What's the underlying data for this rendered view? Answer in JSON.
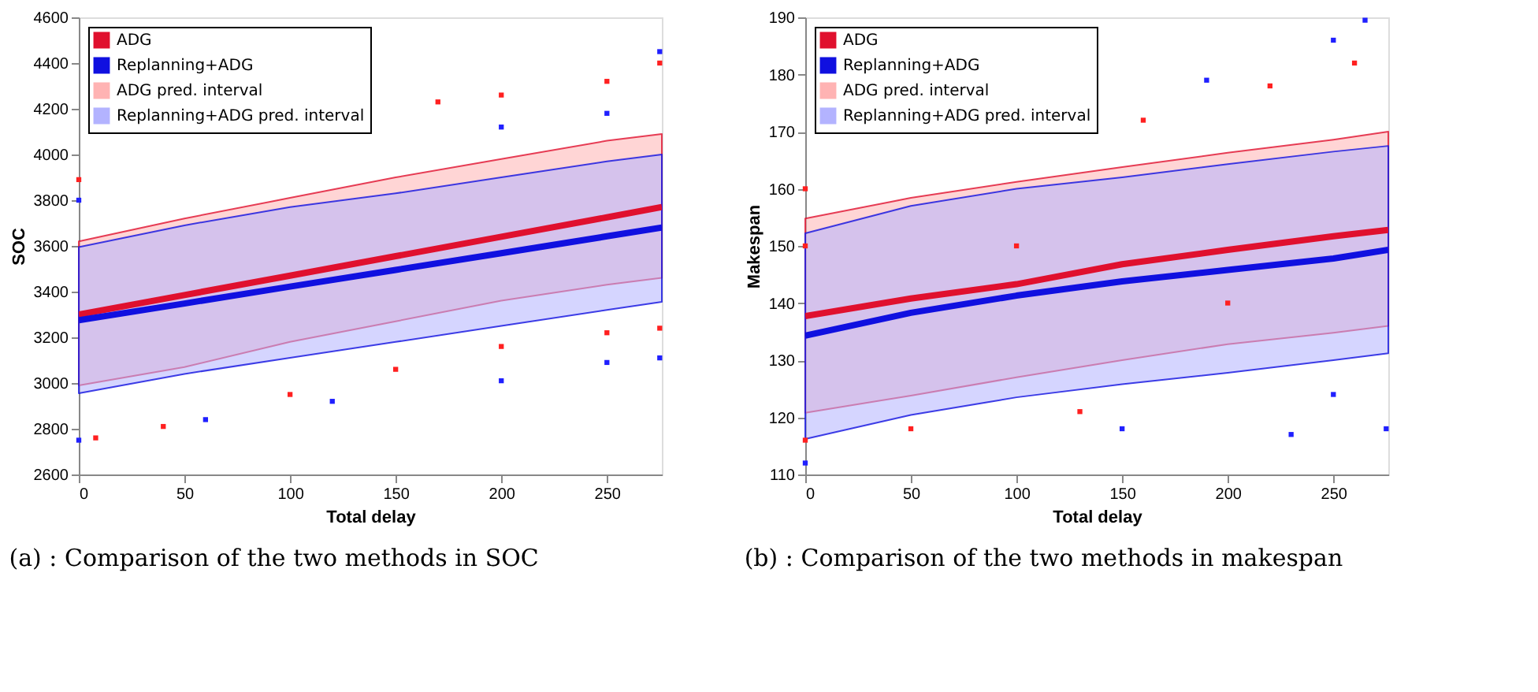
{
  "chart_data": [
    {
      "type": "line",
      "xlabel": "Total delay",
      "ylabel": "SOC",
      "xlim": [
        0,
        276
      ],
      "xticks": [
        0,
        50,
        100,
        150,
        200,
        250
      ],
      "ylim": [
        2600,
        4600
      ],
      "yticks": [
        2600,
        2800,
        3000,
        3200,
        3400,
        3600,
        3800,
        4000,
        4200,
        4400,
        4600
      ],
      "grid": false,
      "legend": "top left",
      "annotations": [
        "(a) : Comparison of the two methods in SOC"
      ],
      "x": [
        0,
        50,
        100,
        150,
        200,
        250,
        276
      ],
      "series": [
        {
          "type": "area",
          "name": "ADG pred. interval",
          "color": "#ffb3b3",
          "values": [
            null,
            null,
            null,
            null,
            null,
            null,
            null
          ]
        },
        {
          "type": "area",
          "name": "Replanning+ADG pred. interval",
          "color": "#b3b3ff",
          "values": [
            null,
            null,
            null,
            null,
            null,
            null,
            null
          ]
        },
        {
          "type": "scatter",
          "color": "#ff2020",
          "x": [
            0,
            170,
            200,
            250,
            275,
            8,
            40,
            100,
            150,
            200,
            250,
            275
          ],
          "values": [
            3890,
            4230,
            4260,
            4320,
            4400,
            2760,
            2810,
            2950,
            3060,
            3160,
            3220,
            3240
          ]
        },
        {
          "type": "scatter",
          "color": "#2020ff",
          "x": [
            0,
            200,
            250,
            275,
            0,
            60,
            120,
            200,
            250,
            275
          ],
          "values": [
            3800,
            4120,
            4180,
            4450,
            2750,
            2840,
            2920,
            3010,
            3090,
            3110
          ]
        },
        {
          "name": "ADG",
          "color": "#e0102e",
          "values": [
            3300,
            3385,
            3470,
            3555,
            3640,
            3725,
            3770
          ],
          "lower": [
            2990,
            3070,
            3180,
            3270,
            3360,
            3430,
            3460
          ],
          "upper": [
            3620,
            3720,
            3810,
            3900,
            3980,
            4060,
            4090
          ]
        },
        {
          "name": "Replanning+ADG",
          "color": "#1010e0",
          "values": [
            3275,
            3348,
            3422,
            3495,
            3568,
            3642,
            3680
          ],
          "lower": [
            2955,
            3040,
            3110,
            3180,
            3250,
            3320,
            3355
          ],
          "upper": [
            3595,
            3690,
            3770,
            3830,
            3900,
            3970,
            4000
          ]
        }
      ]
    },
    {
      "type": "line",
      "xlabel": "Total delay",
      "ylabel": "Makespan",
      "xlim": [
        0,
        276
      ],
      "xticks": [
        0,
        50,
        100,
        150,
        200,
        250
      ],
      "ylim": [
        110,
        190
      ],
      "yticks": [
        110,
        120,
        130,
        140,
        150,
        160,
        170,
        180,
        190
      ],
      "grid": false,
      "legend": "top left",
      "annotations": [
        "(b) : Comparison of the two methods in makespan"
      ],
      "x": [
        0,
        50,
        100,
        150,
        200,
        250,
        276
      ],
      "series": [
        {
          "type": "area",
          "name": "ADG pred. interval",
          "color": "#ffb3b3",
          "values": [
            null,
            null,
            null,
            null,
            null,
            null,
            null
          ]
        },
        {
          "type": "area",
          "name": "Replanning+ADG pred. interval",
          "color": "#b3b3ff",
          "values": [
            null,
            null,
            null,
            null,
            null,
            null,
            null
          ]
        },
        {
          "type": "scatter",
          "color": "#ff2020",
          "x": [
            0,
            160,
            220,
            260,
            0,
            50,
            130,
            0,
            100,
            200
          ],
          "values": [
            160,
            172,
            178,
            182,
            116,
            118,
            121,
            150,
            150,
            140
          ]
        },
        {
          "type": "scatter",
          "color": "#2020ff",
          "x": [
            0,
            190,
            250,
            265,
            150,
            230,
            250,
            275
          ],
          "values": [
            112,
            179,
            186,
            189.5,
            118,
            117,
            124,
            118
          ]
        },
        {
          "name": "ADG",
          "color": "#e0102e",
          "values": [
            137.7,
            140.8,
            143.3,
            146.8,
            149.3,
            151.7,
            152.8
          ],
          "lower": [
            120.8,
            123.8,
            127,
            130,
            132.8,
            134.8,
            136
          ],
          "upper": [
            154.8,
            158.4,
            161.2,
            163.8,
            166.3,
            168.6,
            170
          ]
        },
        {
          "name": "Replanning+ADG",
          "color": "#1010e0",
          "values": [
            134.3,
            138.3,
            141.3,
            143.8,
            145.8,
            147.8,
            149.3
          ],
          "lower": [
            116.2,
            120.4,
            123.5,
            125.8,
            127.8,
            130,
            131.2
          ],
          "upper": [
            152.2,
            157,
            160,
            162,
            164.3,
            166.5,
            167.5
          ]
        }
      ]
    }
  ]
}
